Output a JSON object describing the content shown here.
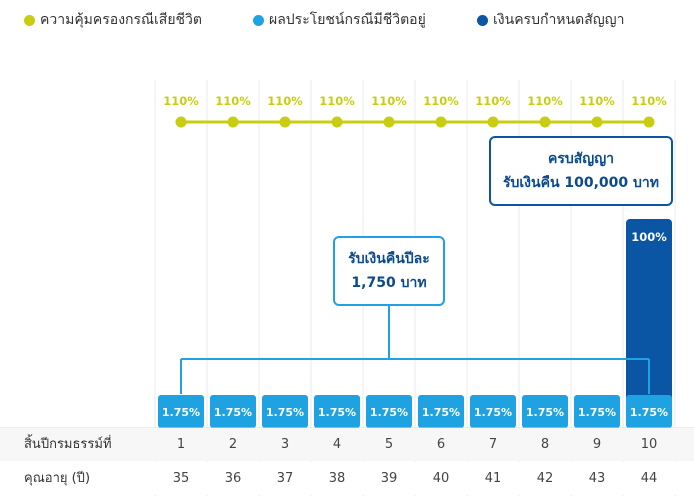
{
  "legend": [
    {
      "label": "ความคุ้มครองกรณีเสียชีวิต",
      "color": "#c8cd12"
    },
    {
      "label": "ผลประโยชน์กรณีมีชีวิตอยู่",
      "color": "#1ea2e1"
    },
    {
      "label": "เงินครบกำหนดสัญญา",
      "color": "#0a55a4"
    }
  ],
  "chart_data": {
    "type": "bar",
    "categories": [
      "1",
      "2",
      "3",
      "4",
      "5",
      "6",
      "7",
      "8",
      "9",
      "10"
    ],
    "series": [
      {
        "name": "ความคุ้มครองกรณีเสียชีวิต",
        "kind": "line",
        "values": [
          110,
          110,
          110,
          110,
          110,
          110,
          110,
          110,
          110,
          110
        ],
        "labels": [
          "110%",
          "110%",
          "110%",
          "110%",
          "110%",
          "110%",
          "110%",
          "110%",
          "110%",
          "110%"
        ]
      },
      {
        "name": "ผลประโยชน์กรณีมีชีวิตอยู่",
        "kind": "bar",
        "values": [
          1.75,
          1.75,
          1.75,
          1.75,
          1.75,
          1.75,
          1.75,
          1.75,
          1.75,
          1.75
        ],
        "labels": [
          "1.75%",
          "1.75%",
          "1.75%",
          "1.75%",
          "1.75%",
          "1.75%",
          "1.75%",
          "1.75%",
          "1.75%",
          "1.75%"
        ]
      },
      {
        "name": "เงินครบกำหนดสัญญา",
        "kind": "bar",
        "values": [
          null,
          null,
          null,
          null,
          null,
          null,
          null,
          null,
          null,
          100
        ],
        "labels": [
          "",
          "",
          "",
          "",
          "",
          "",
          "",
          "",
          "",
          "100%"
        ]
      }
    ],
    "colors": {
      "death": "#c8cd12",
      "annual": "#1ea2e1",
      "maturity": "#0a55a4"
    }
  },
  "callouts": {
    "annual": {
      "line1": "รับเงินคืนปีละ",
      "line2": "1,750 บาท"
    },
    "maturity": {
      "line1": "ครบสัญญา",
      "line2": "รับเงินคืน 100,000 บาท"
    }
  },
  "table": {
    "year_label": "สิ้นปีกรมธรรม์ที่",
    "age_label": "คุณอายุ (ปี)",
    "years": [
      "1",
      "2",
      "3",
      "4",
      "5",
      "6",
      "7",
      "8",
      "9",
      "10"
    ],
    "ages": [
      "35",
      "36",
      "37",
      "38",
      "39",
      "40",
      "41",
      "42",
      "43",
      "44"
    ]
  }
}
